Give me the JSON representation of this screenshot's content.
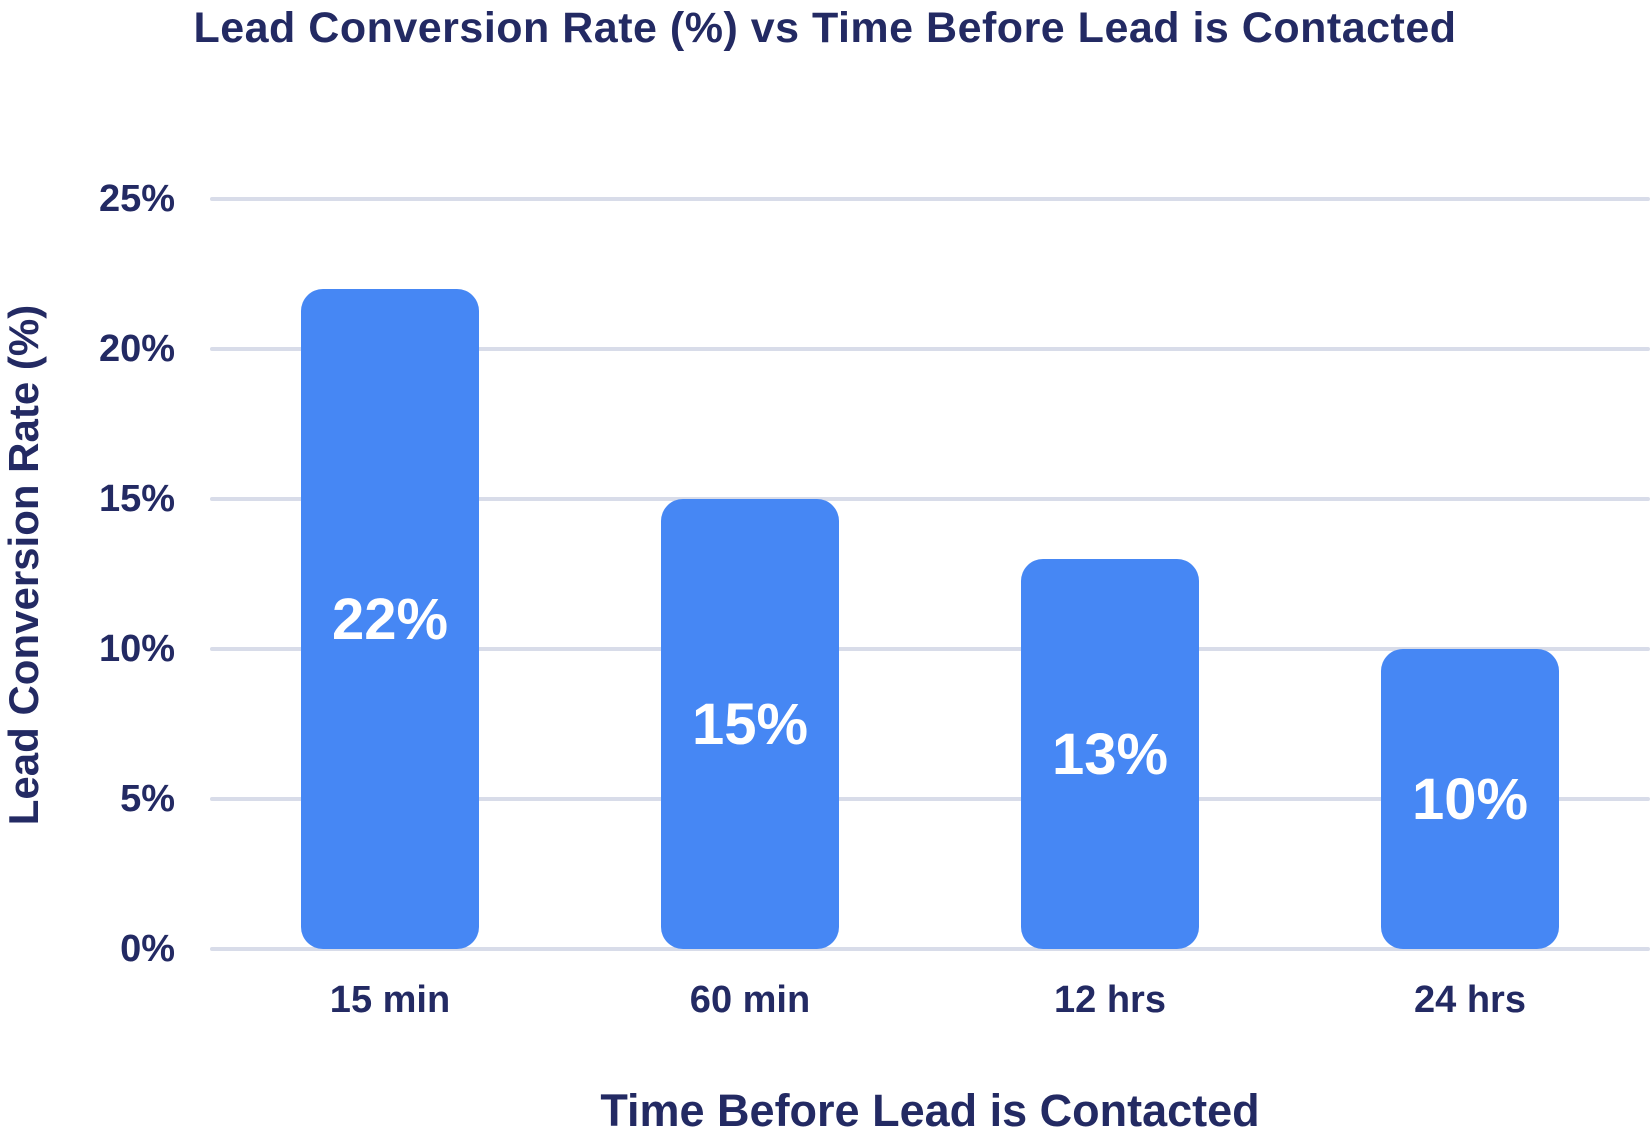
{
  "chart_data": {
    "type": "bar",
    "title": "Lead Conversion Rate (%) vs Time Before Lead is Contacted",
    "xlabel": "Time Before Lead is Contacted",
    "ylabel": "Lead Conversion Rate (%)",
    "categories": [
      "15 min",
      "60 min",
      "12 hrs",
      "24 hrs"
    ],
    "values": [
      22,
      15,
      13,
      10
    ],
    "bar_labels": [
      "22%",
      "15%",
      "13%",
      "10%"
    ],
    "y_tick_labels": [
      "25%",
      "20%",
      "15%",
      "10%",
      "5%",
      "0%"
    ],
    "y_tick_values": [
      25,
      20,
      15,
      10,
      5,
      0
    ],
    "ylim": [
      0,
      25
    ],
    "grid": "horizontal-only",
    "legend": "none",
    "colors": {
      "bar": "#4687F4",
      "text": "#232A63",
      "gridline": "#D8DCE9",
      "bar_label_text": "#FFFFFF",
      "background": "#FFFFFF"
    }
  }
}
